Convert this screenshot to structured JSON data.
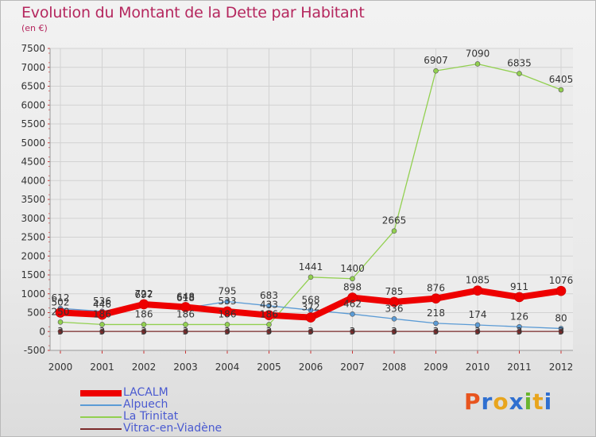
{
  "header": {
    "title": "Evolution du Montant de la Dette par Habitant",
    "unit": "(en €)"
  },
  "brand": {
    "text": "Proxiti",
    "colors": [
      "#e8541e",
      "#2f6fd0",
      "#e8a51e",
      "#2f6fd0",
      "#6ab52e",
      "#e8a51e",
      "#2f6fd0"
    ]
  },
  "chart_data": {
    "type": "line",
    "x": [
      "2000",
      "2001",
      "2002",
      "2003",
      "2004",
      "2005",
      "2006",
      "2007",
      "2008",
      "2009",
      "2010",
      "2011",
      "2012"
    ],
    "ylim": [
      -500,
      7500
    ],
    "yticks": [
      "-500",
      "0",
      "500",
      "1000",
      "1500",
      "2000",
      "2500",
      "3000",
      "3500",
      "4000",
      "4500",
      "5000",
      "5500",
      "6000",
      "6500",
      "7000",
      "7500"
    ],
    "grid": true,
    "legend_position": "bottom-left",
    "series": [
      {
        "name": "LACALM",
        "color": "#ee0000",
        "width": 8,
        "values": [
          502,
          446,
          722,
          648,
          533,
          433,
          372,
          898,
          785,
          876,
          1085,
          911,
          1076
        ],
        "labels": [
          "502",
          "446",
          "722",
          "648",
          "533",
          "433",
          "372",
          "898",
          "785",
          "876",
          "1085",
          "911",
          "1076"
        ]
      },
      {
        "name": "Alpuech",
        "color": "#5b9bd5",
        "width": 1.3,
        "values": [
          612,
          536,
          697,
          618,
          795,
          683,
          568,
          462,
          336,
          218,
          174,
          126,
          80
        ],
        "labels": [
          "612",
          "536",
          "697",
          "618",
          "795",
          "683",
          "568",
          "462",
          "336",
          "218",
          "174",
          "126",
          "80"
        ]
      },
      {
        "name": "La Trinitat",
        "color": "#92d050",
        "width": 1.3,
        "values": [
          250,
          186,
          186,
          186,
          186,
          186,
          1441,
          1400,
          2665,
          6907,
          7090,
          6835,
          6405
        ],
        "labels": [
          "250",
          "186",
          "186",
          "186",
          "186",
          "186",
          "1441",
          "1400",
          "2665",
          "6907",
          "7090",
          "6835",
          "6405"
        ]
      },
      {
        "name": "Vitrac-en-Viadène",
        "color": "#7b2a2a",
        "width": 1.3,
        "values": [
          3,
          3,
          3,
          3,
          3,
          3,
          3,
          3,
          3,
          3,
          3,
          3,
          3
        ],
        "labels": [
          "3",
          "3",
          "3",
          "3",
          "3",
          "3",
          "3",
          "3",
          "3",
          "3",
          "3",
          "3",
          "3"
        ]
      }
    ]
  }
}
